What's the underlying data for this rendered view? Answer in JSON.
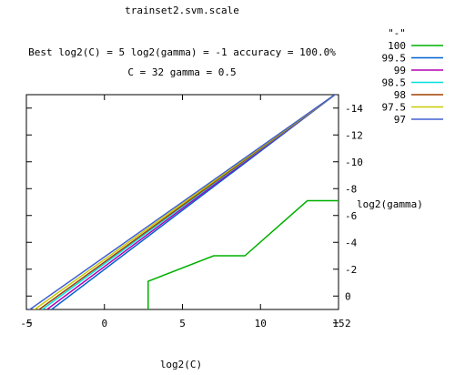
{
  "chart_data": {
    "type": "line",
    "title": "trainset2.svm.scale",
    "subtitle_line1": "Best log2(C) = 5  log2(gamma) = -1  accuracy = 100.0%",
    "subtitle_line2": "C = 32  gamma = 0.5",
    "xlabel": "log2(C)",
    "ylabel": "log2(gamma)",
    "xlim": [
      -5,
      15
    ],
    "ylim": [
      1,
      -15
    ],
    "x_ticks": [
      -5,
      0,
      5,
      10,
      15
    ],
    "y_ticks": [
      2,
      0,
      -2,
      -4,
      -6,
      -8,
      -10,
      -12,
      -14
    ],
    "legend_title": "\"-\"",
    "legend_position": "top-right",
    "grid": false,
    "series": [
      {
        "name": "100",
        "color": "#00b000",
        "x": [
          2.8,
          2.8,
          7,
          9,
          13,
          15
        ],
        "y": [
          1.1,
          -1.1,
          -3,
          -3,
          -7.1,
          -7.1
        ]
      },
      {
        "name": "99.5",
        "color": "#0060d0",
        "x": [
          -3.5,
          15
        ],
        "y": [
          1.1,
          -15.2
        ]
      },
      {
        "name": "99",
        "color": "#b000b0",
        "x": [
          -3.8,
          15
        ],
        "y": [
          1.1,
          -15.2
        ]
      },
      {
        "name": "98.5",
        "color": "#00e0e0",
        "x": [
          -4.1,
          15
        ],
        "y": [
          1.1,
          -15.2
        ]
      },
      {
        "name": "98",
        "color": "#a04000",
        "x": [
          -4.3,
          15
        ],
        "y": [
          1.1,
          -15.2
        ]
      },
      {
        "name": "97.5",
        "color": "#c8c800",
        "x": [
          -4.6,
          15
        ],
        "y": [
          1.1,
          -15.2
        ]
      },
      {
        "name": "97",
        "color": "#4060d0",
        "x": [
          -4.9,
          15
        ],
        "y": [
          1.1,
          -15.2
        ]
      }
    ]
  }
}
